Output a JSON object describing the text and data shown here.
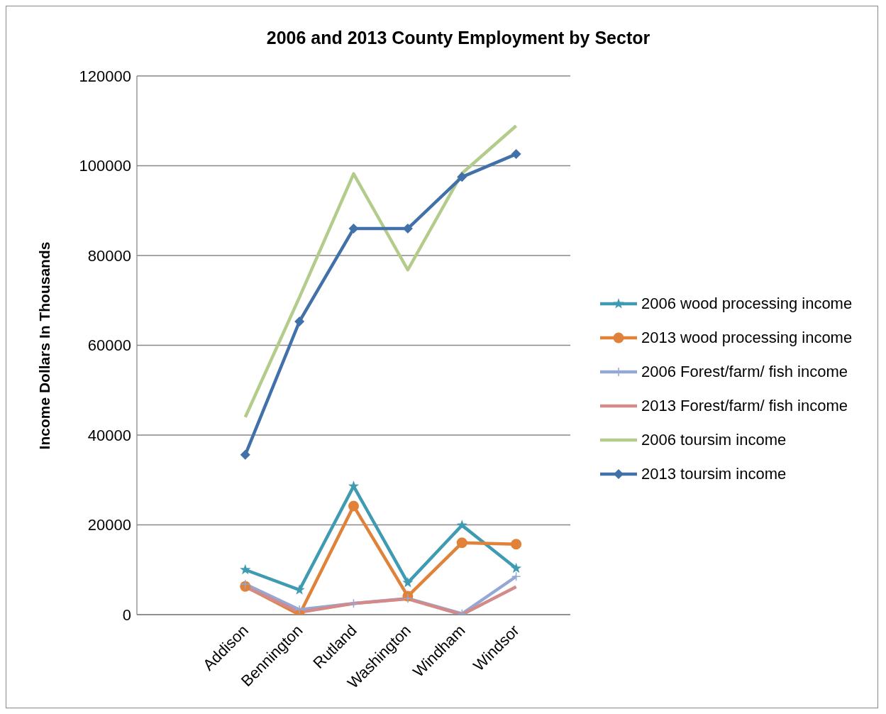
{
  "chart_data": {
    "type": "line",
    "title": "2006 and 2013 County Employment by Sector",
    "ylabel": "Income Dollars In Thousands",
    "categories": [
      null,
      null,
      "Addison",
      "Bennington",
      "Rutland",
      "Washington",
      "Windham",
      "Windsor",
      null
    ],
    "series": [
      {
        "name": "2006 wood processing income",
        "color": "#3f9bb2",
        "marker": "star",
        "values": [
          null,
          null,
          10000,
          5500,
          28600,
          7100,
          19900,
          10300,
          null
        ]
      },
      {
        "name": "2013 wood processing income",
        "color": "#e0823a",
        "marker": "circle",
        "values": [
          null,
          null,
          6300,
          0,
          24200,
          4100,
          16000,
          15700,
          null
        ]
      },
      {
        "name": "2006 Forest/farm/ fish income",
        "color": "#94a8d4",
        "marker": "cross",
        "values": [
          null,
          null,
          6800,
          1100,
          2500,
          3600,
          200,
          8500,
          null
        ]
      },
      {
        "name": "2013 Forest/farm/ fish income",
        "color": "#d48a88",
        "marker": "none",
        "values": [
          null,
          null,
          6200,
          500,
          2500,
          3500,
          0,
          6200,
          null
        ]
      },
      {
        "name": "2006 toursim income",
        "color": "#b3cc8b",
        "marker": "none",
        "values": [
          null,
          null,
          44000,
          70700,
          98200,
          76800,
          98300,
          108900,
          null
        ]
      },
      {
        "name": "2013 toursim income",
        "color": "#4271aa",
        "marker": "diamond",
        "values": [
          null,
          null,
          35600,
          65300,
          86000,
          86000,
          97500,
          102600,
          null
        ]
      }
    ],
    "ylim": [
      0,
      120000
    ],
    "yticks": [
      0,
      20000,
      40000,
      60000,
      80000,
      100000,
      120000
    ],
    "grid": "y",
    "legend": "right"
  }
}
